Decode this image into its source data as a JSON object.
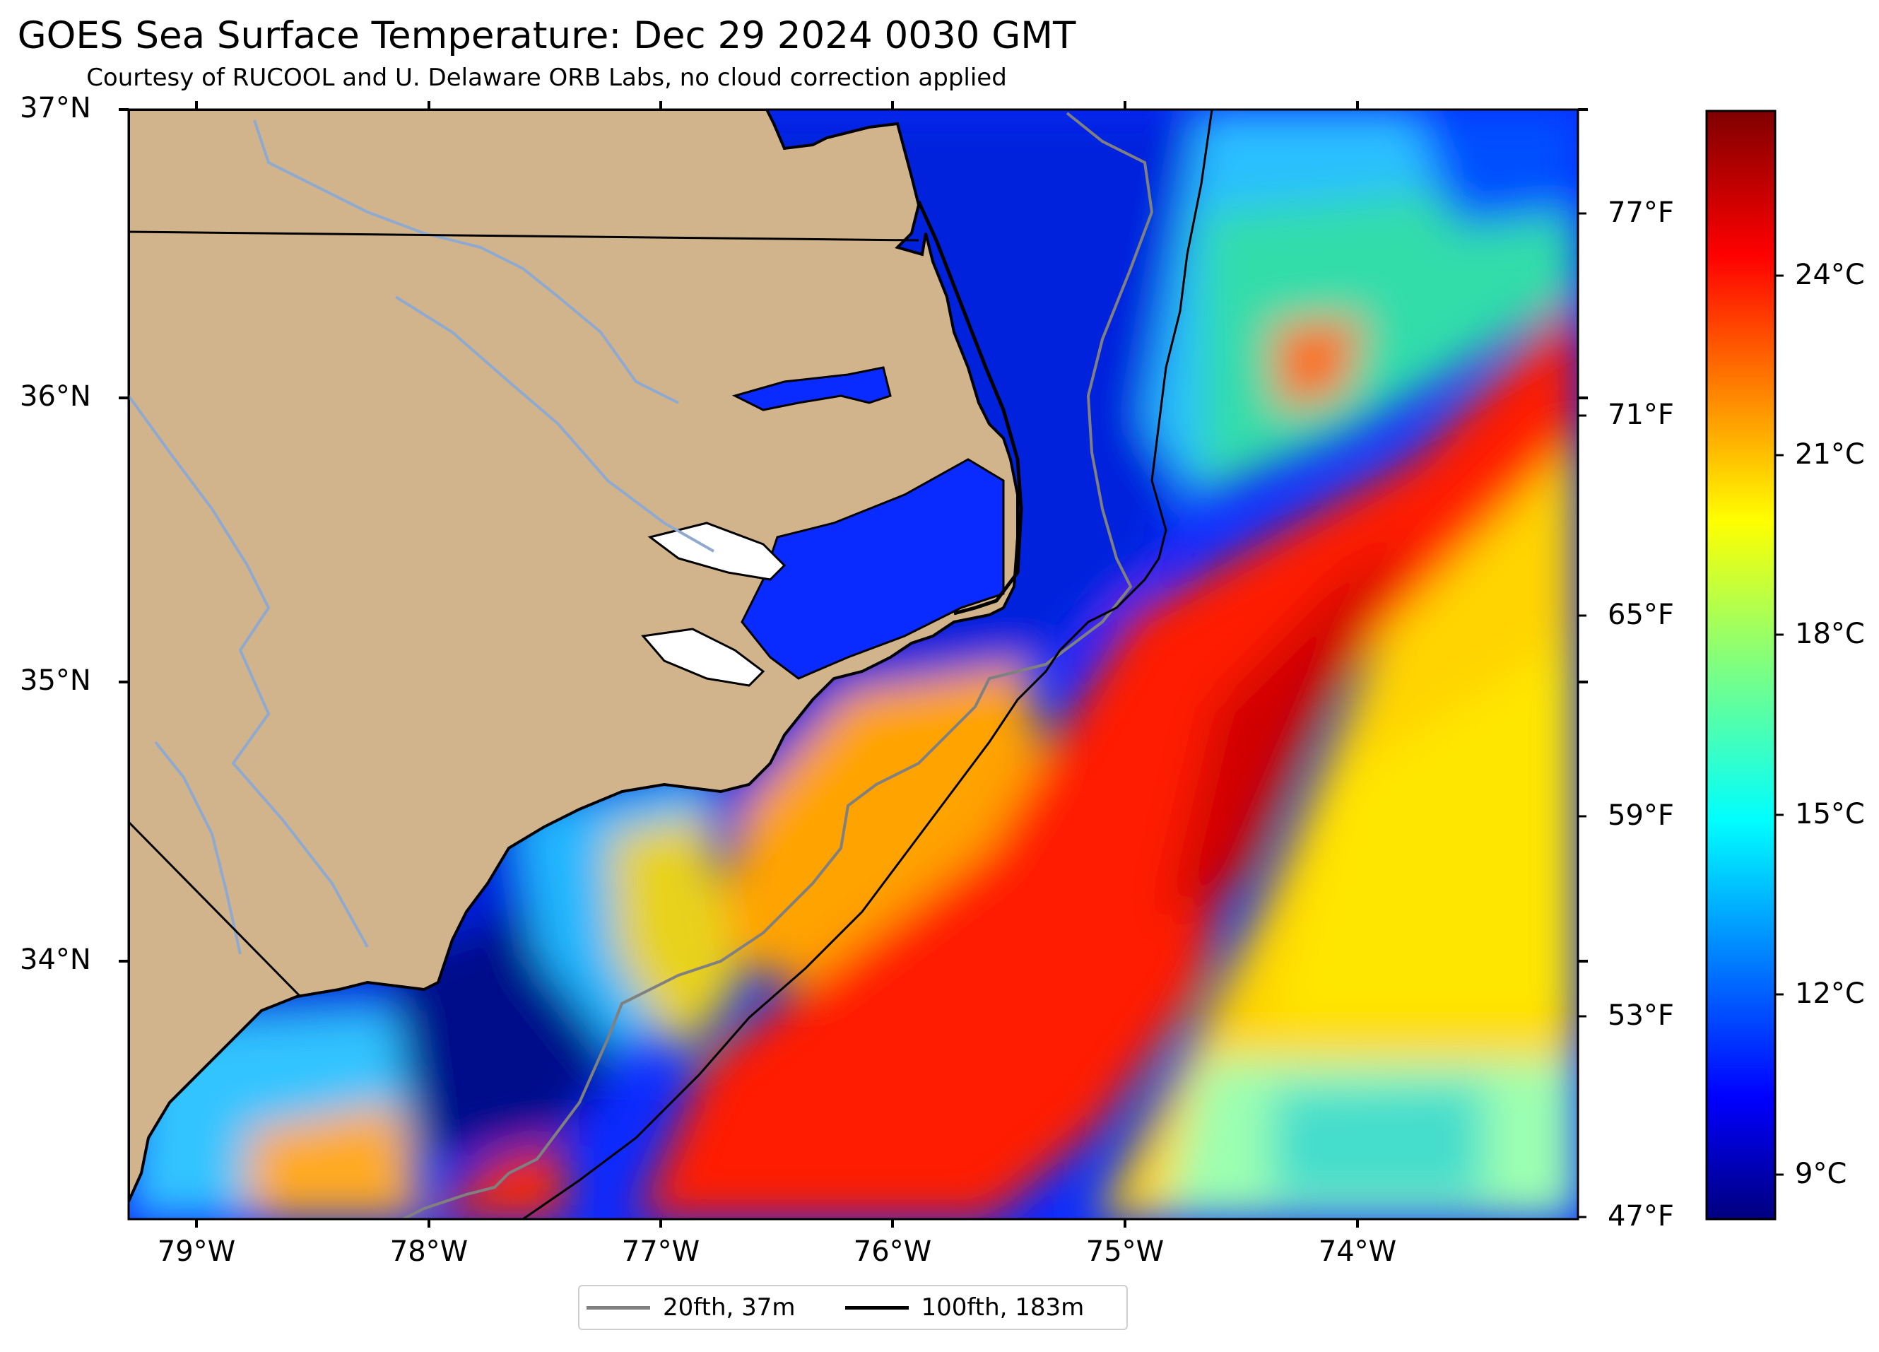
{
  "title": "GOES Sea Surface Temperature: Dec 29 2024 0030 GMT",
  "subtitle": "Courtesy of RUCOOL and U. Delaware ORB Labs, no cloud correction applied",
  "lat_labels": [
    "37°N",
    "36°N",
    "35°N",
    "34°N"
  ],
  "lon_labels": [
    "79°W",
    "78°W",
    "77°W",
    "76°W",
    "75°W",
    "74°W"
  ],
  "fahrenheit_labels": [
    "77°F",
    "71°F",
    "65°F",
    "59°F",
    "53°F",
    "47°F"
  ],
  "celsius_labels": [
    "24°C",
    "21°C",
    "18°C",
    "15°C",
    "12°C",
    "9°C"
  ],
  "legend": [
    {
      "label": "20fth, 37m",
      "color": "#808080"
    },
    {
      "label": "100fth, 183m",
      "color": "#000000"
    }
  ],
  "colors": {
    "land": "#d2b48c",
    "river": "#8fa9cf",
    "coastline": "#000000",
    "isobath_20fth": "#808080",
    "isobath_100fth": "#000000",
    "colormap": "jet"
  }
}
